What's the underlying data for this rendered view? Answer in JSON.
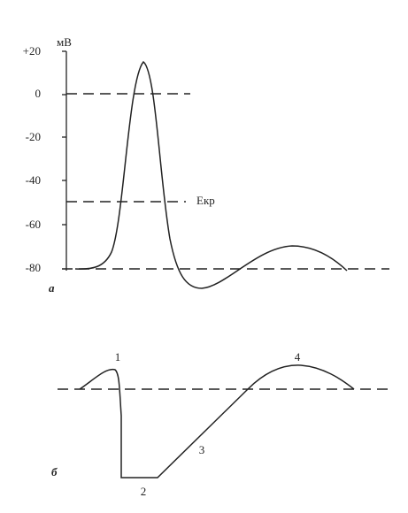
{
  "panel_a": {
    "unit": "мВ",
    "ticks": [
      "+20",
      "0",
      "-20",
      "-40",
      "-60",
      "-80"
    ],
    "threshold_label": "Екр",
    "label": "а"
  },
  "panel_b": {
    "label": "б",
    "phases": [
      "1",
      "2",
      "3",
      "4"
    ]
  }
}
